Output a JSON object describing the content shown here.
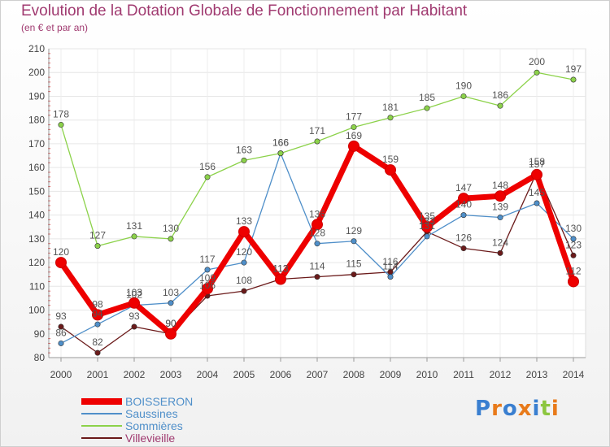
{
  "title": "Evolution de la Dotation Globale de Fonctionnement par Habitant",
  "subtitle": "(en € et par an)",
  "brand": {
    "text": "Proxiti"
  },
  "chart_data": {
    "type": "line",
    "title": "Evolution de la Dotation Globale de Fonctionnement par Habitant",
    "ylabel": "(en € et par an)",
    "xlabel": "",
    "x": [
      2000,
      2001,
      2002,
      2003,
      2004,
      2005,
      2006,
      2007,
      2008,
      2009,
      2010,
      2011,
      2012,
      2013,
      2014
    ],
    "ylim": [
      80,
      210
    ],
    "yticks": [
      80,
      90,
      100,
      110,
      120,
      130,
      140,
      150,
      160,
      170,
      180,
      190,
      200,
      210
    ],
    "grid": true,
    "legend": "bottom-left",
    "series": [
      {
        "name": "Villevieille",
        "color": "#6b1a1a",
        "values": [
          93,
          82,
          93,
          90,
          106,
          108,
          113,
          114,
          115,
          116,
          133,
          126,
          124,
          158,
          123
        ]
      },
      {
        "name": "Saussines",
        "color": "#4f8fc9",
        "values": [
          86,
          94,
          102,
          103,
          117,
          120,
          166,
          128,
          129,
          114,
          131,
          140,
          139,
          145,
          130
        ]
      },
      {
        "name": "Sommières",
        "color": "#8cd24a",
        "values": [
          178,
          127,
          131,
          130,
          156,
          163,
          166,
          171,
          177,
          181,
          185,
          190,
          186,
          200,
          197
        ]
      },
      {
        "name": "BOISSERON",
        "color": "#ee0000",
        "values": [
          120,
          98,
          103,
          90,
          109,
          133,
          113,
          136,
          169,
          159,
          135,
          147,
          148,
          157,
          112
        ]
      }
    ],
    "legend_order": [
      "BOISSERON",
      "Saussines",
      "Sommières",
      "Villevieille"
    ]
  }
}
